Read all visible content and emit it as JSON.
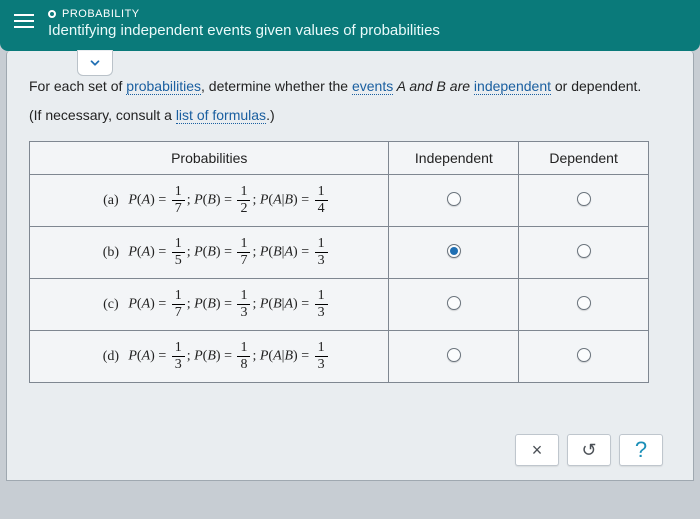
{
  "header": {
    "topic": "PROBABILITY",
    "title": "Identifying independent events given values of probabilities"
  },
  "prompt": {
    "prefix": "For each set of ",
    "link1": "probabilities",
    "mid1": ", determine whether the ",
    "link2": "events",
    "mid2": " A and B are ",
    "link3": "independent",
    "suffix": " or dependent."
  },
  "subprompt": {
    "prefix": "(If necessary, consult a ",
    "link": "list of formulas",
    "suffix": ".)"
  },
  "table": {
    "headers": {
      "prob": "Probabilities",
      "ind": "Independent",
      "dep": "Dependent"
    },
    "rows": [
      {
        "label": "(a)",
        "pa_n": "1",
        "pa_d": "7",
        "pb_n": "1",
        "pb_d": "2",
        "cond": "P(A|B)",
        "pc_n": "1",
        "pc_d": "4",
        "sel": ""
      },
      {
        "label": "(b)",
        "pa_n": "1",
        "pa_d": "5",
        "pb_n": "1",
        "pb_d": "7",
        "cond": "P(B|A)",
        "pc_n": "1",
        "pc_d": "3",
        "sel": "ind"
      },
      {
        "label": "(c)",
        "pa_n": "1",
        "pa_d": "7",
        "pb_n": "1",
        "pb_d": "3",
        "cond": "P(B|A)",
        "pc_n": "1",
        "pc_d": "3",
        "sel": ""
      },
      {
        "label": "(d)",
        "pa_n": "1",
        "pa_d": "3",
        "pb_n": "1",
        "pb_d": "8",
        "cond": "P(A|B)",
        "pc_n": "1",
        "pc_d": "3",
        "sel": ""
      }
    ]
  },
  "buttons": {
    "close": "×",
    "reset": "↺",
    "help": "?"
  }
}
